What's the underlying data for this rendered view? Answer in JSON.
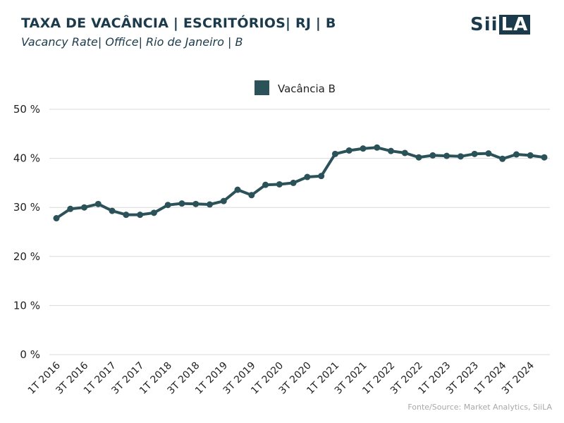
{
  "header": {
    "title": "TAXA DE VACÂNCIA | ESCRITÓRIOS| RJ | B",
    "subtitle": "Vacancy Rate| Office| Rio de Janeiro | B"
  },
  "logo": {
    "text_part": "Sii",
    "box_part": "LA"
  },
  "footer": {
    "source": "Fonte/Source: Market Analytics, SiiLA"
  },
  "colors": {
    "series": "#2b5259",
    "grid": "#d9d9d9",
    "title": "#1b3a4b"
  },
  "chart_data": {
    "type": "line",
    "legend": "top-center",
    "grid": true,
    "ylim": [
      0,
      50
    ],
    "yticks": [
      "0 %",
      "10 %",
      "20 %",
      "30 %",
      "40 %",
      "50 %"
    ],
    "xticks": [
      "1T 2016",
      "3T 2016",
      "1T 2017",
      "3T 2017",
      "1T 2018",
      "3T 2018",
      "1T 2019",
      "3T 2019",
      "1T 2020",
      "3T 2020",
      "1T 2021",
      "3T 2021",
      "1T 2022",
      "3T 2022",
      "1T 2023",
      "3T 2023",
      "1T 2024",
      "3T 2024"
    ],
    "x": [
      "1T 2016",
      "2T 2016",
      "3T 2016",
      "4T 2016",
      "1T 2017",
      "2T 2017",
      "3T 2017",
      "4T 2017",
      "1T 2018",
      "2T 2018",
      "3T 2018",
      "4T 2018",
      "1T 2019",
      "2T 2019",
      "3T 2019",
      "4T 2019",
      "1T 2020",
      "2T 2020",
      "3T 2020",
      "4T 2020",
      "1T 2021",
      "2T 2021",
      "3T 2021",
      "4T 2021",
      "1T 2022",
      "2T 2022",
      "3T 2022",
      "4T 2022",
      "1T 2023",
      "2T 2023",
      "3T 2023",
      "4T 2023",
      "1T 2024",
      "2T 2024",
      "3T 2024",
      "4T 2024"
    ],
    "series": [
      {
        "name": "Vacância B",
        "values": [
          27.8,
          29.7,
          30.0,
          30.7,
          29.3,
          28.5,
          28.5,
          28.9,
          30.5,
          30.8,
          30.7,
          30.6,
          31.3,
          33.6,
          32.5,
          34.6,
          34.7,
          35.0,
          36.2,
          36.4,
          40.9,
          41.6,
          42.0,
          42.2,
          41.5,
          41.1,
          40.2,
          40.6,
          40.5,
          40.4,
          40.9,
          41.0,
          39.9,
          40.8,
          40.6,
          40.2
        ]
      }
    ]
  }
}
